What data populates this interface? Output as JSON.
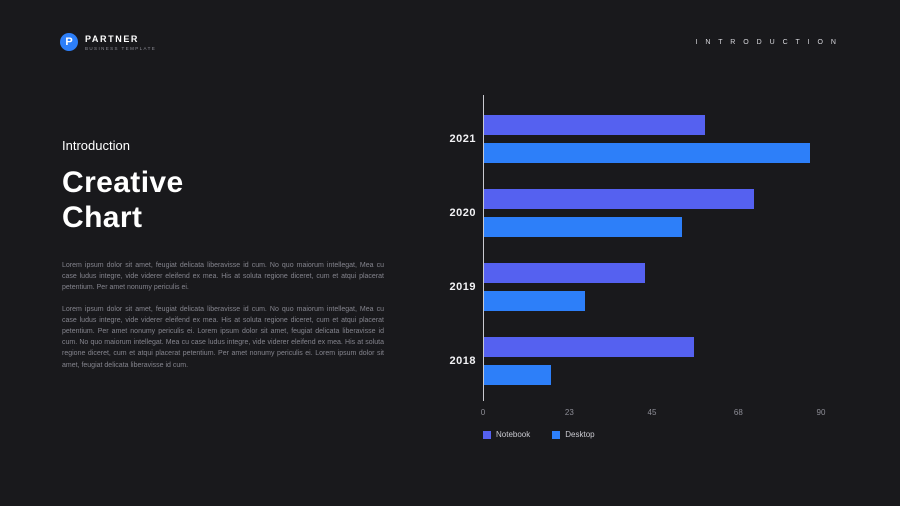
{
  "header": {
    "logo_initial": "P",
    "logo_name": "PARTNER",
    "logo_tagline": "BUSINESS TEMPLATE",
    "page_label": "I N T R O D U C T I O N"
  },
  "content": {
    "kicker": "Introduction",
    "title_line1": "Creative",
    "title_line2": "Chart",
    "paragraphs": [
      "Lorem ipsum dolor sit amet, feugiat delicata liberavisse id cum. No quo maiorum intellegat, Mea cu case ludus integre, vide viderer eleifend ex mea. His at soluta regione diceret, cum et atqui placerat petentium. Per amet nonumy periculis ei.",
      "Lorem ipsum dolor sit amet, feugiat delicata liberavisse id cum. No quo maiorum intellegat, Mea cu case ludus integre, vide viderer eleifend ex mea. His at soluta regione diceret, cum et atqui placerat petentium. Per amet nonumy periculis ei. Lorem ipsum dolor sit amet, feugiat delicata liberavisse id cum. No quo maiorum intellegat. Mea cu case ludus integre, vide viderer eleifend ex mea. His at soluta regione diceret, cum et atqui placerat petentium. Per amet nonumy periculis ei. Lorem ipsum dolor sit amet, feugiat delicata liberavisse id cum."
    ]
  },
  "chart_data": {
    "type": "bar",
    "orientation": "horizontal",
    "categories": [
      "2021",
      "2020",
      "2019",
      "2018"
    ],
    "series": [
      {
        "name": "Notebook",
        "color": "#5561F0",
        "values": [
          59,
          72,
          43,
          56
        ]
      },
      {
        "name": "Desktop",
        "color": "#2D7FF9",
        "values": [
          87,
          53,
          27,
          18
        ]
      }
    ],
    "xlim": [
      0,
      90
    ],
    "xticks": [
      0,
      23,
      45,
      68,
      90
    ],
    "grid": false,
    "legend_position": "bottom-left",
    "axis_color": "#c9c9cf"
  },
  "colors": {
    "background": "#19191c",
    "accent_blue": "#2D7FF9",
    "accent_indigo": "#5561F0"
  }
}
